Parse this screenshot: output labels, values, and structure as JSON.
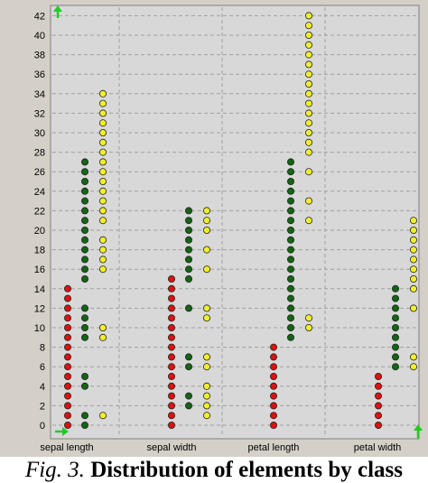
{
  "caption": {
    "fig_label": "Fig. 3.",
    "title": "Distribution of elements by class"
  },
  "colors": {
    "background": "#d4d0c8",
    "plot_area": "#d8d8d8",
    "grid": "#a0a0a0",
    "class_1": "#dd1111",
    "class_2": "#116611",
    "class_3": "#f2ef2a",
    "axis_arrow": "#22cc22"
  },
  "chart_data": {
    "type": "scatter",
    "title": "",
    "xlabel": "",
    "ylabel": "",
    "grid": true,
    "ylim": [
      0,
      43
    ],
    "y_ticks": [
      0,
      2,
      4,
      6,
      8,
      10,
      12,
      14,
      16,
      18,
      20,
      22,
      24,
      26,
      28,
      30,
      32,
      34,
      36,
      38,
      40,
      42
    ],
    "categories": [
      "sepal length",
      "sepal width",
      "petal length",
      "petal width"
    ],
    "series": [
      {
        "values": [
          [
            0,
            1,
            2,
            3,
            4,
            5,
            6,
            7,
            8,
            9,
            10,
            11,
            12,
            13,
            14
          ],
          [
            0,
            1,
            2,
            3,
            4,
            5,
            6,
            7,
            8,
            9,
            10,
            11,
            12,
            13,
            14,
            15
          ],
          [
            0,
            1,
            2,
            3,
            4,
            5,
            6,
            7,
            8
          ],
          [
            0,
            1,
            2,
            3,
            4,
            5
          ]
        ]
      },
      {
        "values": [
          [
            0,
            1,
            4,
            5,
            9,
            10,
            11,
            12,
            15,
            16,
            17,
            18,
            19,
            20,
            21,
            22,
            23,
            24,
            25,
            26,
            27
          ],
          [
            2,
            3,
            6,
            7,
            12,
            15,
            16,
            17,
            18,
            19,
            20,
            21,
            22
          ],
          [
            9,
            10,
            11,
            12,
            13,
            14,
            15,
            16,
            17,
            18,
            19,
            20,
            21,
            22,
            23,
            24,
            25,
            26,
            27
          ],
          [
            6,
            7,
            8,
            9,
            10,
            11,
            12,
            13,
            14
          ]
        ]
      },
      {
        "values": [
          [
            1,
            9,
            10,
            16,
            17,
            18,
            19,
            21,
            22,
            23,
            24,
            25,
            26,
            27,
            28,
            29,
            30,
            31,
            32,
            33,
            34
          ],
          [
            1,
            2,
            3,
            4,
            6,
            7,
            11,
            12,
            16,
            18,
            20,
            21,
            22
          ],
          [
            10,
            11,
            21,
            23,
            26,
            28,
            29,
            30,
            31,
            32,
            33,
            34,
            35,
            36,
            37,
            38,
            39,
            40,
            41,
            42
          ],
          [
            6,
            7,
            12,
            14,
            15,
            16,
            17,
            18,
            19,
            20,
            21
          ]
        ]
      }
    ]
  }
}
